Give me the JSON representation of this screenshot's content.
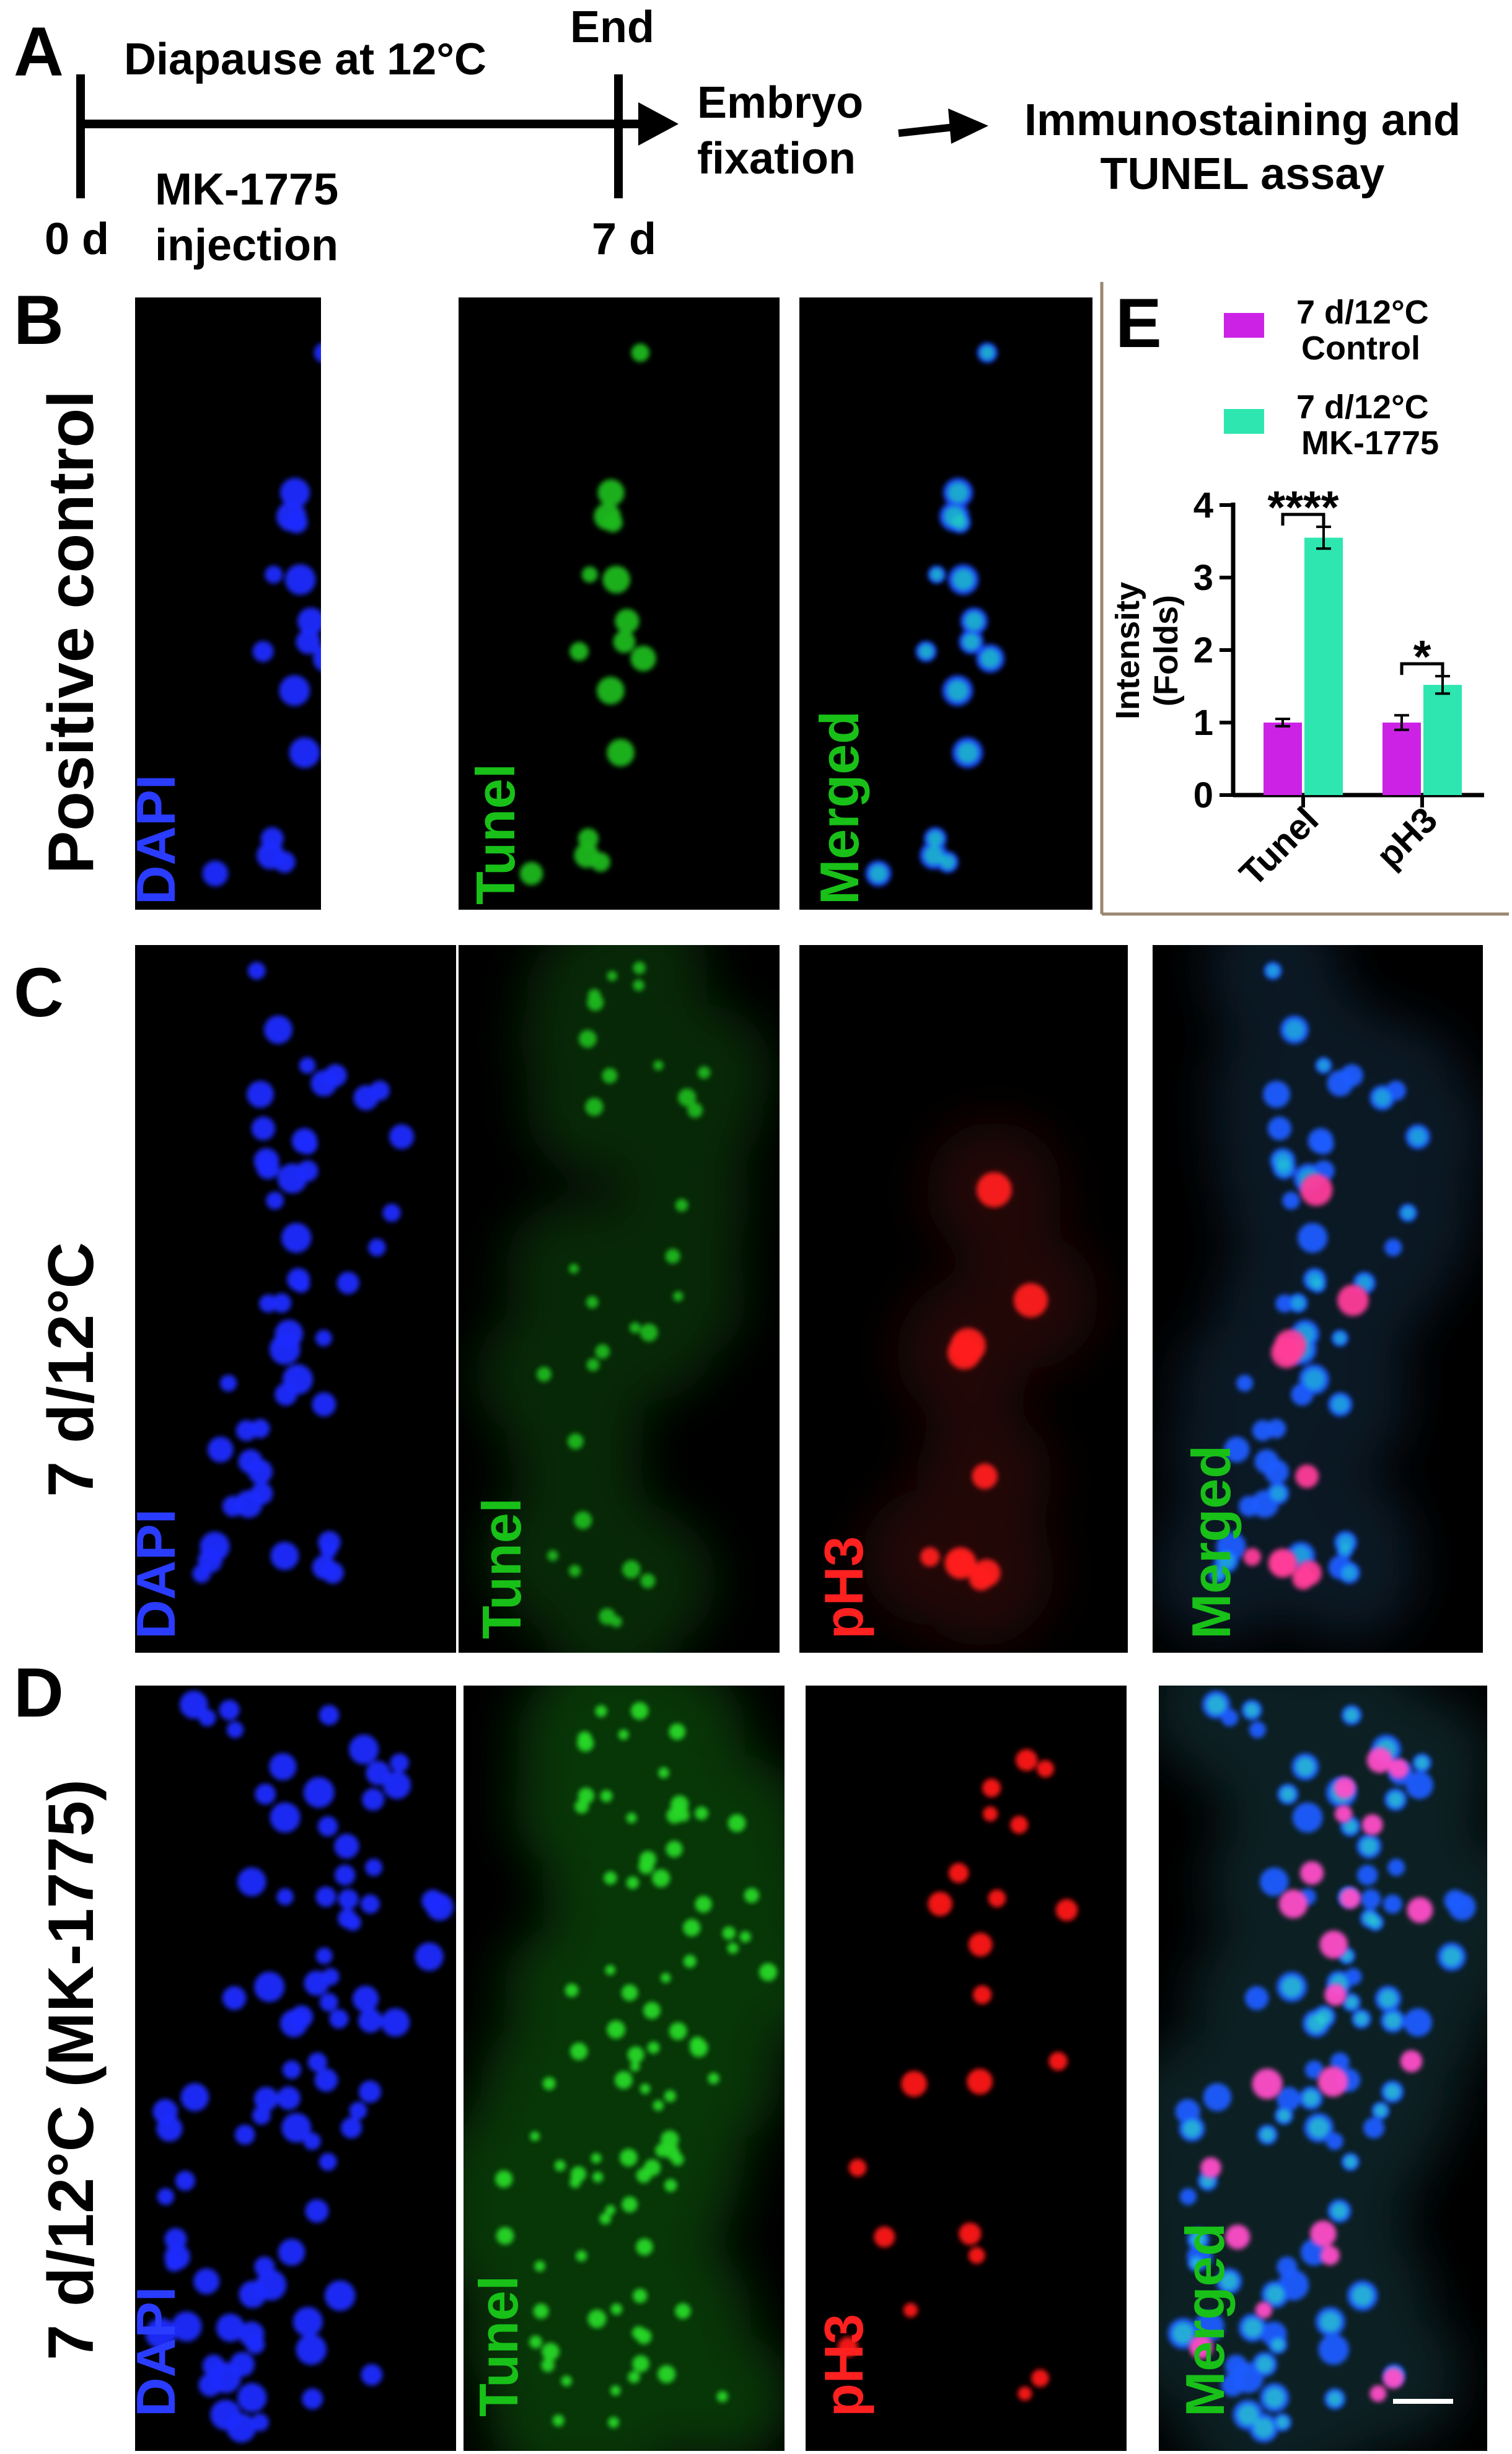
{
  "panel_a": {
    "letter": "A",
    "diapause_label": "Diapause at 12°C",
    "end_label": "End",
    "start_tick": "0 d",
    "end_tick": "7 d",
    "injection_line1": "MK-1775",
    "injection_line2": "injection",
    "fixation_line1": "Embryo",
    "fixation_line2": "fixation",
    "assay_line1": "Immunostaining and",
    "assay_line2": "TUNEL assay"
  },
  "panel_b": {
    "letter": "B",
    "row_label": "Positive control",
    "images": [
      {
        "label": "DAPI",
        "color": "#2a3cff"
      },
      {
        "label": "Tunel",
        "color": "#18c018"
      },
      {
        "label": "Merged",
        "color": "#18c018"
      }
    ]
  },
  "panel_c": {
    "letter": "C",
    "row_label": "7 d/12°C",
    "images": [
      {
        "label": "DAPI",
        "color": "#2a3cff"
      },
      {
        "label": "Tunel",
        "color": "#18c018"
      },
      {
        "label": "pH3",
        "color": "#ff2020"
      },
      {
        "label": "Merged",
        "color": "#18c018"
      }
    ]
  },
  "panel_d": {
    "letter": "D",
    "row_label": "7 d/12°C (MK-1775)",
    "images": [
      {
        "label": "DAPI",
        "color": "#2a3cff"
      },
      {
        "label": "Tunel",
        "color": "#18c018"
      },
      {
        "label": "pH3",
        "color": "#ff2020"
      },
      {
        "label": "Merged",
        "color": "#18c018"
      }
    ]
  },
  "colors": {
    "dapi": "#2a3cff",
    "tunel": "#18c018",
    "ph3": "#ff2020",
    "control_bar": "#cc22e6",
    "mk_bar": "#2ee6b0"
  },
  "chart_data": {
    "type": "bar",
    "panel_letter": "E",
    "categories": [
      "Tunel",
      "pH3"
    ],
    "series": [
      {
        "name": "7 d/12°C Control",
        "name_line1": "7 d/12°C",
        "name_line2": "Control",
        "color": "#cc22e6",
        "values": [
          1.0,
          1.0
        ],
        "errors": [
          0.05,
          0.1
        ]
      },
      {
        "name": "7 d/12°C MK-1775",
        "name_line1": "7 d/12°C",
        "name_line2": "MK-1775",
        "color": "#2ee6b0",
        "values": [
          3.55,
          1.52
        ],
        "errors": [
          0.15,
          0.12
        ]
      }
    ],
    "ylabel_line1": "Intensity",
    "ylabel_line2": "(Folds)",
    "ylim": [
      0,
      4
    ],
    "yticks": [
      0,
      1,
      2,
      3,
      4
    ],
    "annotations": [
      "****",
      "*"
    ],
    "legend_position": "top"
  }
}
